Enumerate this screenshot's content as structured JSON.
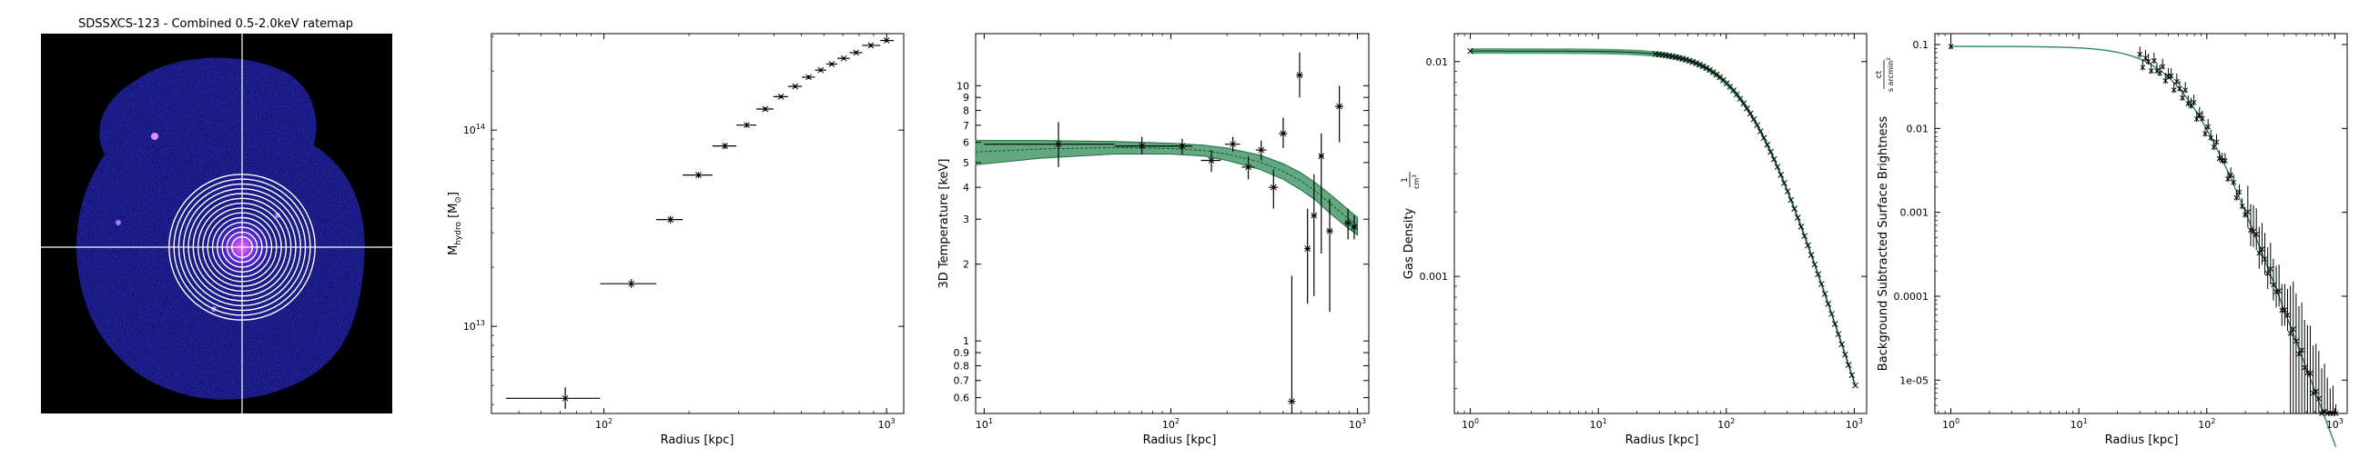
{
  "colors": {
    "band_fill": "#2e8b57",
    "band_edge": "#1f6e3f",
    "points": "#000000",
    "image_bg": "#000000",
    "image_emission": "#1a1aa0",
    "rings": "#ffffff",
    "crosshair": "#ffffff"
  },
  "chart_data": [
    {
      "type": "image",
      "title": "SDSSXCS-123 - Combined 0.5-2.0keV ratemap",
      "annuli_count": 14,
      "crosshair": true
    },
    {
      "type": "scatter",
      "xlabel": "Radius [kpc]",
      "ylabel_main": "M",
      "ylabel_sub": "hydro",
      "ylabel_tail": " [M",
      "ylabel_sun": "⊙",
      "ylabel_close": "]",
      "xscale": "log",
      "yscale": "log",
      "xlim": [
        40,
        1150
      ],
      "ylim": [
        3600000000000.0,
        310000000000000.0
      ],
      "xticks": [
        {
          "v": 100,
          "label": "10",
          "exp": "2"
        },
        {
          "v": 1000,
          "label": "10",
          "exp": "3"
        }
      ],
      "yticks": [
        {
          "v": 10000000000000.0,
          "label": "10",
          "exp": "13"
        },
        {
          "v": 100000000000000.0,
          "label": "10",
          "exp": "14"
        }
      ],
      "points": [
        {
          "x": 73,
          "xlo": 45,
          "xhi": 97,
          "y": 4300000000000.0,
          "ylo": 3800000000000.0,
          "yhi": 4900000000000.0
        },
        {
          "x": 125,
          "xlo": 97,
          "xhi": 153,
          "y": 16500000000000.0,
          "ylo": 15700000000000.0,
          "yhi": 17400000000000.0
        },
        {
          "x": 172,
          "xlo": 153,
          "xhi": 190,
          "y": 35000000000000.0,
          "ylo": 33500000000000.0,
          "yhi": 36500000000000.0
        },
        {
          "x": 216,
          "xlo": 190,
          "xhi": 242,
          "y": 59000000000000.0,
          "ylo": 57000000000000.0,
          "yhi": 61000000000000.0
        },
        {
          "x": 268,
          "xlo": 242,
          "xhi": 294,
          "y": 83000000000000.0,
          "ylo": 80000000000000.0,
          "yhi": 86000000000000.0
        },
        {
          "x": 320,
          "xlo": 294,
          "xhi": 346,
          "y": 106000000000000.0,
          "ylo": 103000000000000.0,
          "yhi": 109000000000000.0
        },
        {
          "x": 372,
          "xlo": 346,
          "xhi": 398,
          "y": 128000000000000.0,
          "ylo": 125000000000000.0,
          "yhi": 131000000000000.0
        },
        {
          "x": 423,
          "xlo": 398,
          "xhi": 448,
          "y": 148000000000000.0,
          "ylo": 145000000000000.0,
          "yhi": 151000000000000.0
        },
        {
          "x": 475,
          "xlo": 448,
          "xhi": 502,
          "y": 167000000000000.0,
          "ylo": 164000000000000.0,
          "yhi": 170000000000000.0
        },
        {
          "x": 530,
          "xlo": 502,
          "xhi": 558,
          "y": 186000000000000.0,
          "ylo": 182000000000000.0,
          "yhi": 190000000000000.0
        },
        {
          "x": 585,
          "xlo": 558,
          "xhi": 612,
          "y": 202000000000000.0,
          "ylo": 198000000000000.0,
          "yhi": 206000000000000.0
        },
        {
          "x": 640,
          "xlo": 612,
          "xhi": 670,
          "y": 217000000000000.0,
          "ylo": 213000000000000.0,
          "yhi": 221000000000000.0
        },
        {
          "x": 705,
          "xlo": 670,
          "xhi": 740,
          "y": 232000000000000.0,
          "ylo": 228000000000000.0,
          "yhi": 236000000000000.0
        },
        {
          "x": 780,
          "xlo": 740,
          "xhi": 820,
          "y": 248000000000000.0,
          "ylo": 243000000000000.0,
          "yhi": 253000000000000.0
        },
        {
          "x": 880,
          "xlo": 820,
          "xhi": 950,
          "y": 270000000000000.0,
          "ylo": 264000000000000.0,
          "yhi": 276000000000000.0
        },
        {
          "x": 1000,
          "xlo": 950,
          "xhi": 1060,
          "y": 286000000000000.0,
          "ylo": 280000000000000.0,
          "yhi": 292000000000000.0
        }
      ]
    },
    {
      "type": "scatter",
      "xlabel": "Radius [kpc]",
      "ylabel": "3D Temperature [keV]",
      "xscale": "log",
      "yscale": "log",
      "xlim": [
        9,
        1150
      ],
      "ylim": [
        0.52,
        16
      ],
      "xticks": [
        {
          "v": 10,
          "label": "10",
          "exp": "1"
        },
        {
          "v": 100,
          "label": "10",
          "exp": "2"
        },
        {
          "v": 1000,
          "label": "10",
          "exp": "3"
        }
      ],
      "yticks": [
        {
          "v": 0.6,
          "label": "0.6"
        },
        {
          "v": 0.7,
          "label": "0.7"
        },
        {
          "v": 0.8,
          "label": "0.8"
        },
        {
          "v": 0.9,
          "label": "0.9"
        },
        {
          "v": 1,
          "label": "1"
        },
        {
          "v": 2,
          "label": "2"
        },
        {
          "v": 3,
          "label": "3"
        },
        {
          "v": 4,
          "label": "4"
        },
        {
          "v": 5,
          "label": "5"
        },
        {
          "v": 6,
          "label": "6"
        },
        {
          "v": 7,
          "label": "7"
        },
        {
          "v": 8,
          "label": "8"
        },
        {
          "v": 9,
          "label": "9"
        },
        {
          "v": 10,
          "label": "10"
        }
      ],
      "band": {
        "x": [
          9,
          20,
          50,
          100,
          150,
          200,
          300,
          400,
          500,
          600,
          700,
          800,
          900,
          1000
        ],
        "lo": [
          4.9,
          5.2,
          5.4,
          5.4,
          5.3,
          5.1,
          4.7,
          4.3,
          3.9,
          3.55,
          3.2,
          2.95,
          2.75,
          2.6
        ],
        "hi": [
          6.1,
          6.1,
          6.05,
          5.95,
          5.85,
          5.7,
          5.35,
          4.95,
          4.55,
          4.15,
          3.8,
          3.5,
          3.25,
          3.05
        ]
      },
      "points": [
        {
          "x": 25,
          "xlo": 10,
          "xhi": 50,
          "y": 5.9,
          "ylo": 4.8,
          "yhi": 7.2
        },
        {
          "x": 70,
          "xlo": 50,
          "xhi": 100,
          "y": 5.8,
          "ylo": 5.4,
          "yhi": 6.3
        },
        {
          "x": 115,
          "xlo": 100,
          "xhi": 130,
          "y": 5.8,
          "ylo": 5.4,
          "yhi": 6.2
        },
        {
          "x": 165,
          "xlo": 145,
          "xhi": 185,
          "y": 5.1,
          "ylo": 4.6,
          "yhi": 5.6
        },
        {
          "x": 215,
          "xlo": 195,
          "xhi": 235,
          "y": 5.9,
          "ylo": 5.5,
          "yhi": 6.3
        },
        {
          "x": 260,
          "xlo": 240,
          "xhi": 280,
          "y": 4.8,
          "ylo": 4.3,
          "yhi": 5.3
        },
        {
          "x": 305,
          "xlo": 285,
          "xhi": 325,
          "y": 5.6,
          "ylo": 5.1,
          "yhi": 6.1
        },
        {
          "x": 355,
          "xlo": 335,
          "xhi": 375,
          "y": 4.0,
          "ylo": 3.3,
          "yhi": 4.7
        },
        {
          "x": 400,
          "xlo": 380,
          "xhi": 420,
          "y": 6.5,
          "ylo": 5.7,
          "yhi": 7.5
        },
        {
          "x": 445,
          "xlo": 425,
          "xhi": 465,
          "y": 0.58,
          "ylo": 0.52,
          "yhi": 1.8
        },
        {
          "x": 490,
          "xlo": 470,
          "xhi": 510,
          "y": 11,
          "ylo": 9.0,
          "yhi": 13.5
        },
        {
          "x": 540,
          "xlo": 520,
          "xhi": 560,
          "y": 2.3,
          "ylo": 1.4,
          "yhi": 3.3
        },
        {
          "x": 585,
          "xlo": 565,
          "xhi": 605,
          "y": 3.1,
          "ylo": 1.5,
          "yhi": 4.5
        },
        {
          "x": 640,
          "xlo": 620,
          "xhi": 660,
          "y": 5.3,
          "ylo": 2.2,
          "yhi": 6.5
        },
        {
          "x": 710,
          "xlo": 680,
          "xhi": 740,
          "y": 2.7,
          "ylo": 1.3,
          "yhi": 3.6
        },
        {
          "x": 800,
          "xlo": 760,
          "xhi": 840,
          "y": 8.3,
          "ylo": 6.0,
          "yhi": 10.0
        },
        {
          "x": 890,
          "xlo": 850,
          "xhi": 930,
          "y": 2.9,
          "ylo": 2.5,
          "yhi": 3.3
        },
        {
          "x": 960,
          "xlo": 930,
          "xhi": 990,
          "y": 2.8,
          "ylo": 2.5,
          "yhi": 3.1
        }
      ]
    },
    {
      "type": "line",
      "xlabel": "Radius [kpc]",
      "ylabel": "Gas Density",
      "ylabel_num": "1",
      "ylabel_den": "cm",
      "ylabel_den_exp": "3",
      "xscale": "log",
      "yscale": "log",
      "xlim": [
        0.75,
        1250
      ],
      "ylim": [
        0.00023,
        0.0135
      ],
      "xticks": [
        {
          "v": 1,
          "label": "10",
          "exp": "0"
        },
        {
          "v": 10,
          "label": "10",
          "exp": "1"
        },
        {
          "v": 100,
          "label": "10",
          "exp": "2"
        },
        {
          "v": 1000,
          "label": "10",
          "exp": "3"
        }
      ],
      "yticks": [
        {
          "v": 0.001,
          "label": "0.001"
        },
        {
          "v": 0.01,
          "label": "0.01"
        }
      ],
      "model": {
        "n0": 0.0112,
        "rc": 150,
        "beta": 0.62,
        "rmin": 1,
        "rmax": 1020
      },
      "markers": {
        "count": 60,
        "rmin": 28,
        "rmax": 1020,
        "first": 1
      }
    },
    {
      "type": "scatter",
      "xlabel": "Radius [kpc]",
      "ylabel": "Background Subtracted Surface Brightness",
      "ylabel_num": "ct",
      "ylabel_den": "s arcmin",
      "ylabel_den_exp": "2",
      "xscale": "log",
      "yscale": "log",
      "xlim": [
        0.75,
        1250
      ],
      "ylim": [
        4e-06,
        0.135
      ],
      "xticks": [
        {
          "v": 1,
          "label": "10",
          "exp": "0"
        },
        {
          "v": 10,
          "label": "10",
          "exp": "1"
        },
        {
          "v": 100,
          "label": "10",
          "exp": "2"
        },
        {
          "v": 1000,
          "label": "10",
          "exp": "3"
        }
      ],
      "yticks": [
        {
          "v": 1e-05,
          "label": "1e-05"
        },
        {
          "v": 0.0001,
          "label": "0.0001"
        },
        {
          "v": 0.001,
          "label": "0.001"
        },
        {
          "v": 0.01,
          "label": "0.01"
        },
        {
          "v": 0.1,
          "label": "0.1"
        }
      ],
      "model": {
        "s0": 0.095,
        "rc": 70,
        "beta": 0.85,
        "rmin": 1,
        "rmax": 1020
      },
      "points": {
        "count": 70,
        "rmin": 30,
        "rmax": 1020,
        "first": 1
      }
    }
  ]
}
